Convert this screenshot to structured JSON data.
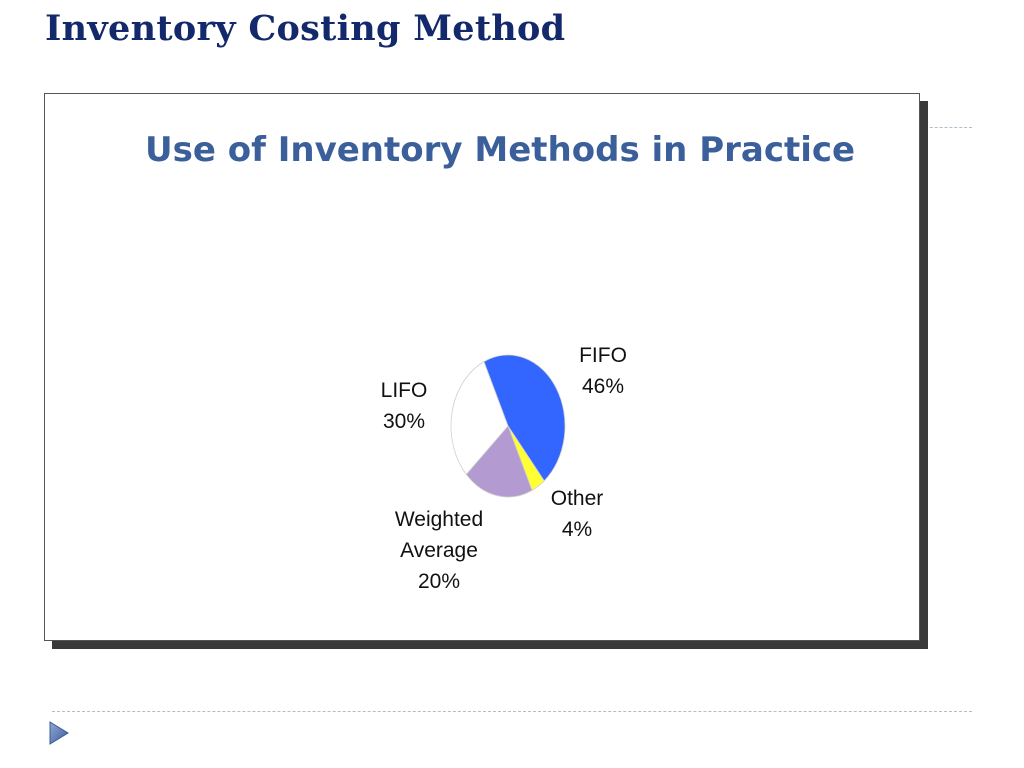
{
  "slide": {
    "title": "Inventory Costing Method"
  },
  "chart_data": {
    "type": "pie",
    "title": "Use of Inventory Methods in Practice",
    "slices": [
      {
        "label_lines": [
          "FIFO",
          "46%"
        ],
        "value": 46,
        "color": "#3366ff"
      },
      {
        "label_lines": [
          "Other",
          "4%"
        ],
        "value": 4,
        "color": "#ffff33"
      },
      {
        "label_lines": [
          "Weighted",
          "Average",
          "20%"
        ],
        "value": 20,
        "color": "#b39ad0"
      },
      {
        "label_lines": [
          "LIFO",
          "30%"
        ],
        "value": 30,
        "color": "#ffffff"
      }
    ],
    "legend": "none"
  },
  "icons": {
    "nav_arrow": "play-arrow-icon",
    "nav_arrow_color": "#4f6fa8"
  }
}
